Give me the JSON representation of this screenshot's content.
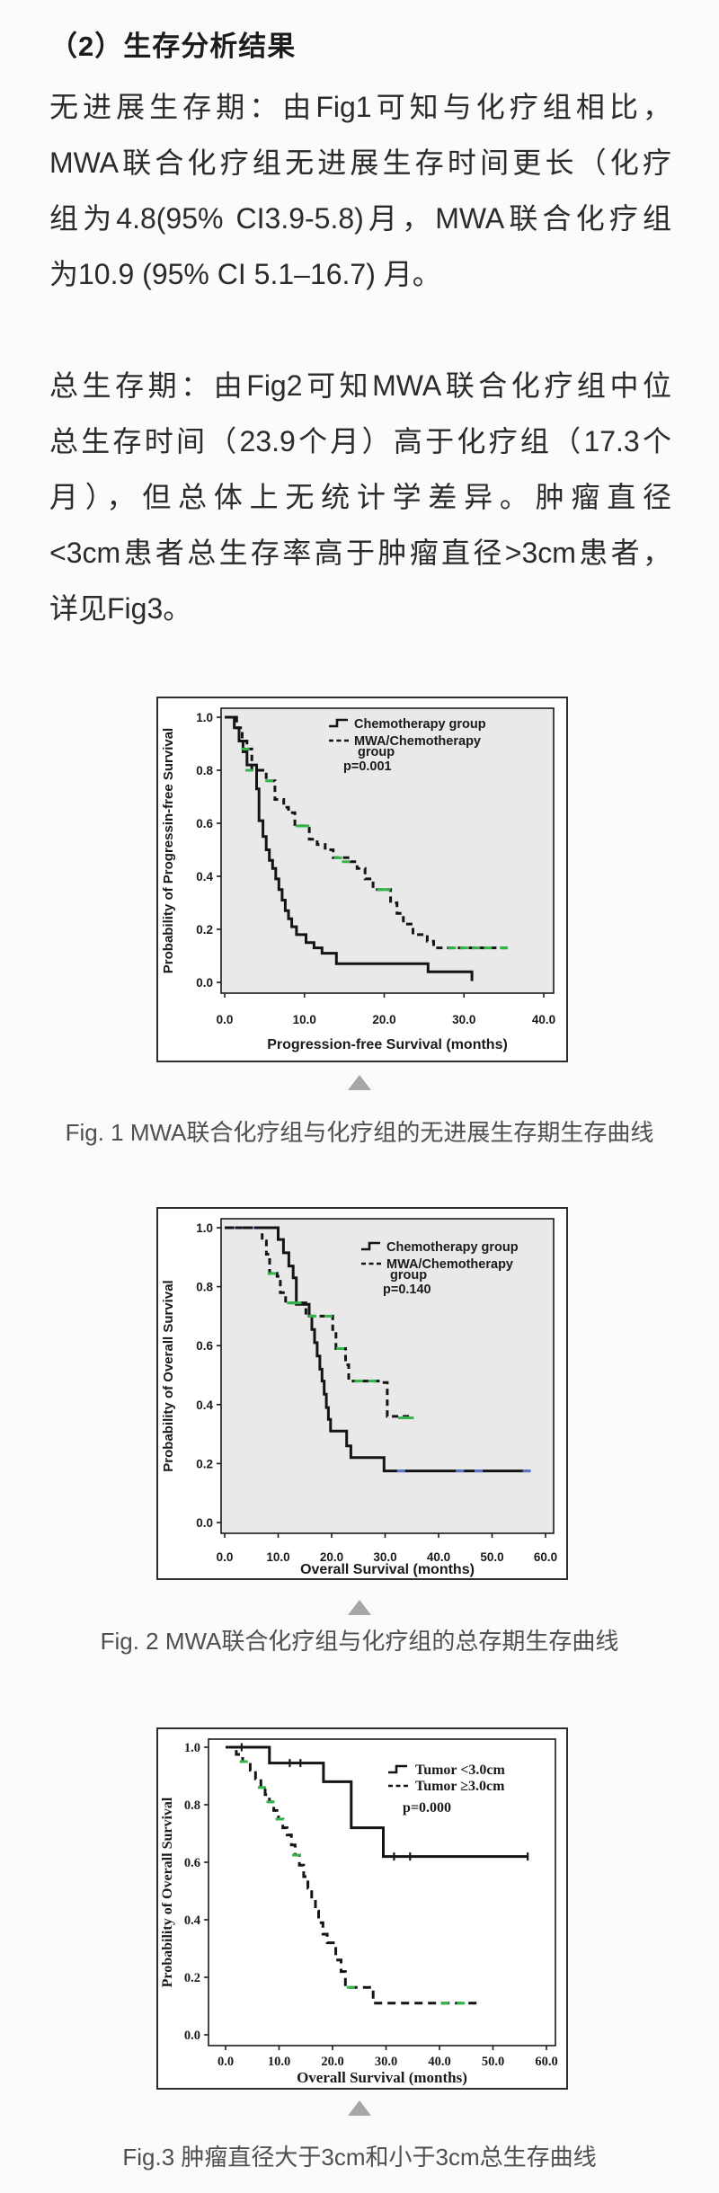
{
  "page": {
    "background": "#fbfbfb"
  },
  "heading": "（2）生存分析结果",
  "paragraphs": [
    {
      "lines": [
        "无进展生存期：由Fig1可知与化疗组相比，",
        "MWA联合化疗组无进展生存时间更长（化疗",
        "组为4.8(95% CI3.9-5.8)月，MWA联合化疗组",
        "为10.9 (95% CI 5.1–16.7) 月。"
      ]
    },
    {
      "lines": [
        "总生存期：由Fig2可知MWA联合化疗组中位",
        "总生存时间（23.9个月）高于化疗组（17.3个",
        "月），但总体上无统计学差异。肿瘤直径",
        "<3cm患者总生存率高于肿瘤直径>3cm患者，",
        "详见Fig3。"
      ]
    }
  ],
  "figures": [
    {
      "caption": "Fig. 1 MWA联合化疗组与化疗组的无进展生存期生存曲线"
    },
    {
      "caption": "Fig. 2 MWA联合化疗组与化疗组的总存期生存曲线"
    },
    {
      "caption": "Fig.3 肿瘤直径大于3cm和小于3cm总生存曲线"
    }
  ],
  "colors": {
    "censor_green": "#33b54a",
    "censor_blue": "#5b76c8",
    "curve": "#141414",
    "plot_bg_gray": "#e9e9e9",
    "triangle_gray": "#a6a6a6"
  },
  "chart_data": [
    {
      "type": "line",
      "subtype": "kaplan-meier-step",
      "title": "",
      "xlabel": "Progression-free Survival (months)",
      "ylabel": "Probability of Progressin-free Survival",
      "xlim": [
        0,
        40
      ],
      "ylim": [
        0,
        1
      ],
      "grid": false,
      "plot_bg": "#e9e9e9",
      "xticks": {
        "values": [
          0,
          10,
          20,
          30,
          40
        ],
        "labels": [
          "0.0",
          "10.0",
          "20.0",
          "30.0",
          "40.0"
        ]
      },
      "yticks": {
        "values": [
          1.0,
          0.8,
          0.6,
          0.4,
          0.2,
          0.0
        ],
        "labels": [
          "1.0",
          "0.8",
          "0.6",
          "0.4",
          "0.2",
          "0.0"
        ]
      },
      "legend": {
        "position": "inside-top-right",
        "p_label": "p=0.001",
        "entries": [
          {
            "style": "solid",
            "label_lines": [
              "Chemotherapy group"
            ]
          },
          {
            "style": "dashed",
            "label_lines": [
              "MWA/Chemotherapy",
              "group"
            ]
          }
        ]
      },
      "series": [
        {
          "name": "Chemotherapy group",
          "style": "solid",
          "color": "#141414",
          "points": [
            [
              0,
              1.0
            ],
            [
              1.2,
              0.96
            ],
            [
              1.8,
              0.91
            ],
            [
              2.3,
              0.87
            ],
            [
              2.8,
              0.82
            ],
            [
              4.0,
              0.73
            ],
            [
              4.3,
              0.61
            ],
            [
              4.8,
              0.55
            ],
            [
              5.2,
              0.5
            ],
            [
              5.6,
              0.46
            ],
            [
              6.0,
              0.43
            ],
            [
              6.4,
              0.39
            ],
            [
              6.8,
              0.35
            ],
            [
              7.2,
              0.31
            ],
            [
              7.6,
              0.27
            ],
            [
              8.0,
              0.24
            ],
            [
              8.4,
              0.21
            ],
            [
              9.0,
              0.18
            ],
            [
              10.2,
              0.15
            ],
            [
              11.2,
              0.13
            ],
            [
              12.2,
              0.11
            ],
            [
              14.0,
              0.07
            ],
            [
              25.5,
              0.04
            ],
            [
              31.0,
              0.005
            ]
          ],
          "censors": [],
          "censor_shape": "dash",
          "censor_color": "#33b54a"
        },
        {
          "name": "MWA/Chemotherapy group",
          "style": "dashed",
          "color": "#141414",
          "points": [
            [
              0,
              1.0
            ],
            [
              1.5,
              0.96
            ],
            [
              2.2,
              0.91
            ],
            [
              2.8,
              0.88
            ],
            [
              3.4,
              0.8
            ],
            [
              5.2,
              0.76
            ],
            [
              6.3,
              0.69
            ],
            [
              7.4,
              0.66
            ],
            [
              8.0,
              0.64
            ],
            [
              8.8,
              0.59
            ],
            [
              10.6,
              0.54
            ],
            [
              11.6,
              0.52
            ],
            [
              12.6,
              0.5
            ],
            [
              13.6,
              0.47
            ],
            [
              15.8,
              0.455
            ],
            [
              16.6,
              0.43
            ],
            [
              17.6,
              0.39
            ],
            [
              18.6,
              0.35
            ],
            [
              20.8,
              0.3
            ],
            [
              21.6,
              0.26
            ],
            [
              22.4,
              0.22
            ],
            [
              23.6,
              0.18
            ],
            [
              25.4,
              0.155
            ],
            [
              26.2,
              0.13
            ],
            [
              35.5,
              0.13
            ]
          ],
          "censors": [
            [
              2.6,
              0.88
            ],
            [
              3.1,
              0.8
            ],
            [
              5.6,
              0.76
            ],
            [
              9.4,
              0.59
            ],
            [
              10.1,
              0.59
            ],
            [
              14.2,
              0.47
            ],
            [
              15.2,
              0.455
            ],
            [
              19.6,
              0.35
            ],
            [
              20.3,
              0.35
            ],
            [
              28.5,
              0.13
            ],
            [
              30.0,
              0.13
            ],
            [
              31.5,
              0.13
            ],
            [
              33.0,
              0.13
            ],
            [
              35.0,
              0.13
            ]
          ],
          "censor_shape": "dash",
          "censor_color": "#33b54a"
        }
      ]
    },
    {
      "type": "line",
      "subtype": "kaplan-meier-step",
      "title": "",
      "xlabel": "Overall Survival (months)",
      "ylabel": "Probability of Overall Survival",
      "xlim": [
        0,
        60
      ],
      "ylim": [
        0,
        1
      ],
      "grid": false,
      "plot_bg": "#e9e9e9",
      "xticks": {
        "values": [
          0,
          10,
          20,
          30,
          40,
          50,
          60
        ],
        "labels": [
          "0.0",
          "10.0",
          "20.0",
          "30.0",
          "40.0",
          "50.0",
          "60.0"
        ]
      },
      "yticks": {
        "values": [
          1.0,
          0.8,
          0.6,
          0.4,
          0.2,
          0.0
        ],
        "labels": [
          "1.0",
          "0.8",
          "0.6",
          "0.4",
          "0.2",
          "0.0"
        ]
      },
      "legend": {
        "position": "inside-top-right",
        "p_label": "p=0.140",
        "entries": [
          {
            "style": "solid",
            "label_lines": [
              "Chemotherapy group"
            ]
          },
          {
            "style": "dashed",
            "label_lines": [
              "MWA/Chemotherapy",
              "group"
            ]
          }
        ]
      },
      "series": [
        {
          "name": "Chemotherapy group",
          "style": "solid",
          "color": "#141414",
          "points": [
            [
              0,
              1.0
            ],
            [
              10.0,
              0.96
            ],
            [
              11.0,
              0.915
            ],
            [
              12.0,
              0.87
            ],
            [
              12.8,
              0.83
            ],
            [
              13.4,
              0.74
            ],
            [
              15.8,
              0.7
            ],
            [
              16.3,
              0.655
            ],
            [
              16.8,
              0.61
            ],
            [
              17.3,
              0.565
            ],
            [
              17.8,
              0.52
            ],
            [
              18.2,
              0.48
            ],
            [
              18.6,
              0.435
            ],
            [
              19.0,
              0.39
            ],
            [
              19.4,
              0.35
            ],
            [
              19.8,
              0.31
            ],
            [
              22.8,
              0.26
            ],
            [
              23.6,
              0.22
            ],
            [
              29.8,
              0.175
            ],
            [
              57.0,
              0.175
            ]
          ],
          "censors": [
            [
              2.5,
              1.0
            ],
            [
              4.8,
              1.0
            ],
            [
              33.0,
              0.175
            ],
            [
              44.0,
              0.175
            ],
            [
              47.5,
              0.175
            ],
            [
              56.5,
              0.175
            ]
          ],
          "censor_shape": "dash",
          "censor_color": "#5b76c8"
        },
        {
          "name": "MWA/Chemotherapy group",
          "style": "dashed",
          "color": "#141414",
          "points": [
            [
              0,
              1.0
            ],
            [
              7.0,
              0.955
            ],
            [
              7.8,
              0.91
            ],
            [
              8.4,
              0.845
            ],
            [
              9.8,
              0.835
            ],
            [
              10.4,
              0.78
            ],
            [
              11.4,
              0.745
            ],
            [
              15.2,
              0.7
            ],
            [
              20.2,
              0.655
            ],
            [
              20.8,
              0.59
            ],
            [
              22.6,
              0.535
            ],
            [
              23.2,
              0.48
            ],
            [
              29.8,
              0.475
            ],
            [
              30.4,
              0.36
            ],
            [
              34.8,
              0.355
            ]
          ],
          "censors": [
            [
              8.8,
              0.845
            ],
            [
              12.4,
              0.745
            ],
            [
              13.6,
              0.745
            ],
            [
              16.4,
              0.7
            ],
            [
              19.4,
              0.7
            ],
            [
              21.6,
              0.59
            ],
            [
              25.0,
              0.48
            ],
            [
              27.6,
              0.48
            ],
            [
              33.2,
              0.355
            ],
            [
              34.6,
              0.355
            ]
          ],
          "censor_shape": "dash",
          "censor_color": "#33b54a"
        }
      ]
    },
    {
      "type": "line",
      "subtype": "kaplan-meier-step",
      "title": "",
      "xlabel": "Overall Survival (months)",
      "ylabel": "Probability of Overall Survival",
      "xlim": [
        0,
        60
      ],
      "ylim": [
        0,
        1
      ],
      "grid": false,
      "plot_bg": "#ffffff",
      "xticks": {
        "values": [
          0,
          10,
          20,
          30,
          40,
          50,
          60
        ],
        "labels": [
          "0.0",
          "10.0",
          "20.0",
          "30.0",
          "40.0",
          "50.0",
          "60.0"
        ]
      },
      "yticks": {
        "values": [
          1.0,
          0.8,
          0.6,
          0.4,
          0.2,
          0.0
        ],
        "labels": [
          "1.0",
          "0.8",
          "0.6",
          "0.4",
          "0.2",
          "0.0"
        ]
      },
      "legend": {
        "position": "inside-top-right",
        "p_label": "p=0.000",
        "entries": [
          {
            "style": "solid",
            "label_lines": [
              "Tumor <3.0cm"
            ]
          },
          {
            "style": "dashed",
            "label_lines": [
              "Tumor ≥3.0cm"
            ]
          }
        ]
      },
      "series": [
        {
          "name": "Tumor <3.0cm",
          "style": "solid",
          "color": "#141414",
          "points": [
            [
              0,
              1.0
            ],
            [
              8.2,
              0.945
            ],
            [
              18.3,
              0.88
            ],
            [
              23.5,
              0.72
            ],
            [
              29.5,
              0.62
            ],
            [
              56.5,
              0.62
            ]
          ],
          "censors": [
            [
              3.0,
              1.0
            ],
            [
              12.0,
              0.945
            ],
            [
              14.0,
              0.945
            ],
            [
              31.5,
              0.62
            ],
            [
              34.5,
              0.62
            ],
            [
              56.5,
              0.62
            ]
          ],
          "censor_shape": "tick",
          "censor_color": "#1a1a1a"
        },
        {
          "name": "Tumor ≥3.0cm",
          "style": "dashed",
          "color": "#141414",
          "points": [
            [
              0,
              1.0
            ],
            [
              2.0,
              0.975
            ],
            [
              3.2,
              0.95
            ],
            [
              4.6,
              0.92
            ],
            [
              5.6,
              0.89
            ],
            [
              6.6,
              0.86
            ],
            [
              7.4,
              0.835
            ],
            [
              8.2,
              0.81
            ],
            [
              9.0,
              0.78
            ],
            [
              9.9,
              0.75
            ],
            [
              10.7,
              0.72
            ],
            [
              11.5,
              0.695
            ],
            [
              12.3,
              0.66
            ],
            [
              13.0,
              0.625
            ],
            [
              13.8,
              0.59
            ],
            [
              14.6,
              0.55
            ],
            [
              15.4,
              0.51
            ],
            [
              16.1,
              0.47
            ],
            [
              16.8,
              0.43
            ],
            [
              17.4,
              0.39
            ],
            [
              18.2,
              0.35
            ],
            [
              19.0,
              0.32
            ],
            [
              20.6,
              0.26
            ],
            [
              21.6,
              0.22
            ],
            [
              22.4,
              0.165
            ],
            [
              27.6,
              0.11
            ],
            [
              47.0,
              0.11
            ]
          ],
          "censors": [
            [
              3.4,
              0.95
            ],
            [
              6.8,
              0.86
            ],
            [
              8.4,
              0.81
            ],
            [
              10.1,
              0.75
            ],
            [
              13.2,
              0.625
            ],
            [
              23.4,
              0.165
            ],
            [
              41.0,
              0.11
            ],
            [
              44.0,
              0.11
            ]
          ],
          "censor_shape": "dash",
          "censor_color": "#33b54a"
        }
      ]
    }
  ]
}
